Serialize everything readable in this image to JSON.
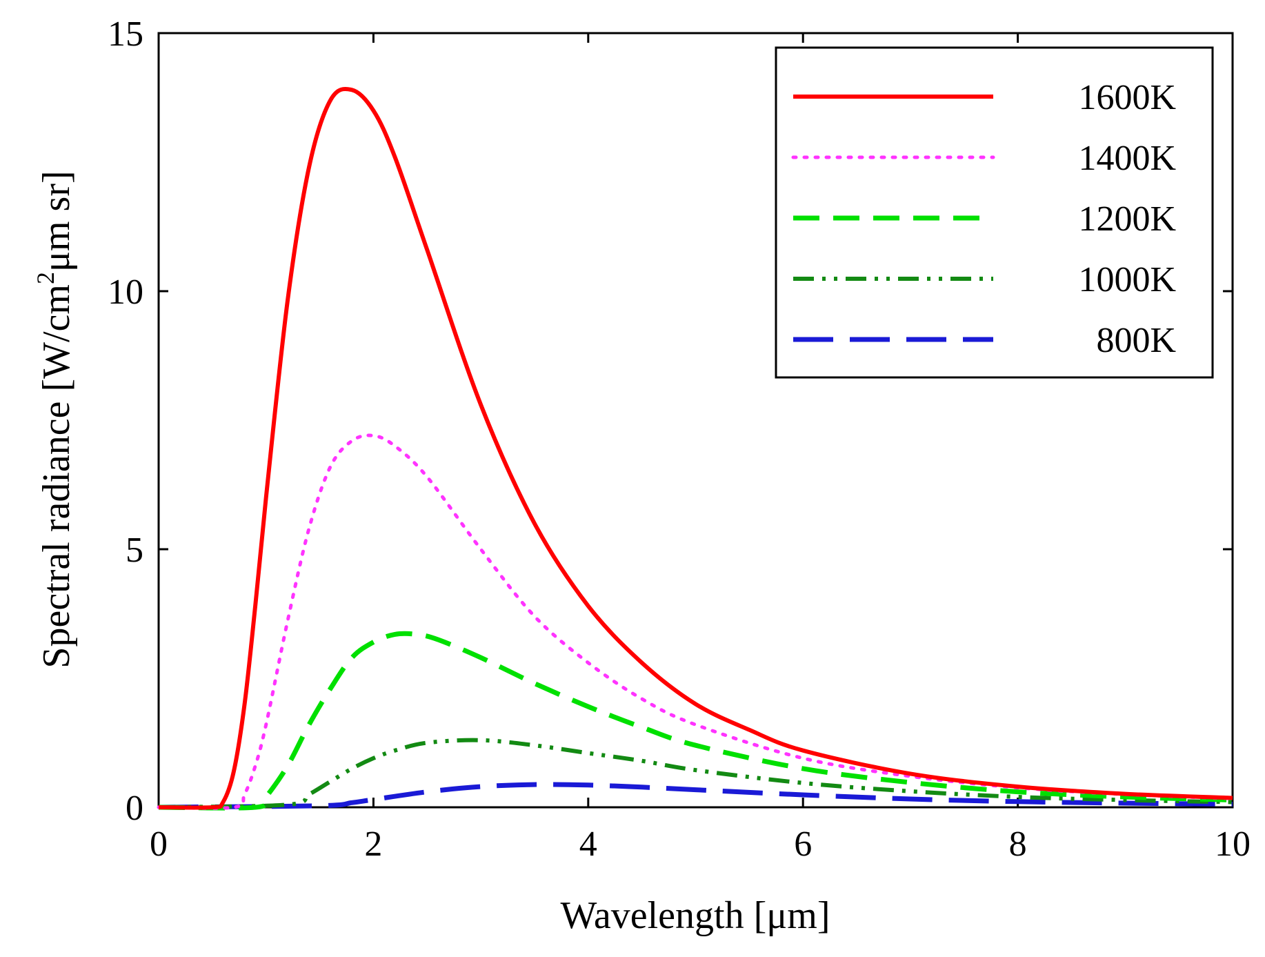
{
  "chart_data": {
    "type": "line",
    "title": "",
    "xlabel": "Wavelength [μm]",
    "ylabel": {
      "prefix": "Spectral radiance [W/cm",
      "sup": "2",
      "suffix": "μm sr]"
    },
    "xlim": [
      0,
      10
    ],
    "ylim": [
      0,
      15
    ],
    "xticks": [
      0,
      2,
      4,
      6,
      8,
      10
    ],
    "xtick_labels": [
      "0",
      "2",
      "4",
      "6",
      "8",
      "10"
    ],
    "yticks": [
      0,
      5,
      10,
      15
    ],
    "ytick_labels": [
      "0",
      "5",
      "10",
      "15"
    ],
    "grid": false,
    "legend_position": "top-right",
    "series": [
      {
        "name": "1600K",
        "color": "#ff0000",
        "dash": "solid",
        "width": 6,
        "x": [
          0.0,
          0.5,
          0.6,
          0.7,
          0.8,
          0.9,
          1.0,
          1.2,
          1.4,
          1.6,
          1.8,
          2.0,
          2.2,
          2.5,
          3.0,
          3.5,
          4.0,
          4.5,
          5.0,
          5.5,
          6.0,
          7.0,
          8.0,
          9.0,
          10.0
        ],
        "y": [
          0.0,
          0.0,
          0.1,
          0.7,
          2.0,
          3.9,
          6.0,
          9.8,
          12.4,
          13.7,
          13.9,
          13.5,
          12.6,
          10.8,
          7.8,
          5.5,
          3.9,
          2.8,
          2.0,
          1.5,
          1.1,
          0.65,
          0.4,
          0.26,
          0.18
        ]
      },
      {
        "name": "1400K",
        "color": "#ff33ff",
        "dash": "dotted",
        "width": 5,
        "x": [
          0.0,
          0.7,
          0.8,
          0.9,
          1.0,
          1.2,
          1.4,
          1.6,
          1.8,
          2.0,
          2.2,
          2.5,
          3.0,
          3.5,
          4.0,
          4.5,
          5.0,
          6.0,
          7.0,
          8.0,
          9.0,
          10.0
        ],
        "y": [
          0.0,
          0.0,
          0.25,
          0.8,
          1.6,
          3.6,
          5.4,
          6.6,
          7.1,
          7.2,
          7.0,
          6.4,
          5.0,
          3.7,
          2.8,
          2.1,
          1.6,
          0.95,
          0.6,
          0.38,
          0.25,
          0.17
        ]
      },
      {
        "name": "1200K",
        "color": "#00e000",
        "dash": "dashed",
        "width": 7,
        "x": [
          0.0,
          0.9,
          1.0,
          1.2,
          1.4,
          1.6,
          1.8,
          2.0,
          2.2,
          2.4,
          2.6,
          3.0,
          3.5,
          4.0,
          4.5,
          5.0,
          6.0,
          7.0,
          8.0,
          9.0,
          10.0
        ],
        "y": [
          0.0,
          0.0,
          0.2,
          0.8,
          1.6,
          2.3,
          2.9,
          3.2,
          3.35,
          3.35,
          3.25,
          2.9,
          2.4,
          1.95,
          1.55,
          1.2,
          0.75,
          0.48,
          0.3,
          0.2,
          0.14
        ]
      },
      {
        "name": "1000K",
        "color": "#138a13",
        "dash": "dashdotdot",
        "width": 6,
        "x": [
          0.0,
          1.2,
          1.4,
          1.6,
          1.8,
          2.0,
          2.2,
          2.5,
          3.0,
          3.5,
          4.0,
          4.5,
          5.0,
          6.0,
          7.0,
          8.0,
          9.0,
          10.0
        ],
        "y": [
          0.0,
          0.05,
          0.25,
          0.5,
          0.75,
          0.95,
          1.1,
          1.25,
          1.3,
          1.2,
          1.05,
          0.9,
          0.72,
          0.47,
          0.31,
          0.2,
          0.14,
          0.1
        ]
      },
      {
        "name": "800K",
        "color": "#1a1ad6",
        "dash": "longdash",
        "width": 7,
        "x": [
          0.0,
          1.5,
          1.8,
          2.0,
          2.5,
          3.0,
          3.5,
          4.0,
          4.5,
          5.0,
          6.0,
          7.0,
          8.0,
          9.0,
          10.0
        ],
        "y": [
          0.0,
          0.03,
          0.09,
          0.15,
          0.3,
          0.4,
          0.44,
          0.43,
          0.39,
          0.34,
          0.24,
          0.16,
          0.11,
          0.08,
          0.06
        ]
      }
    ]
  }
}
